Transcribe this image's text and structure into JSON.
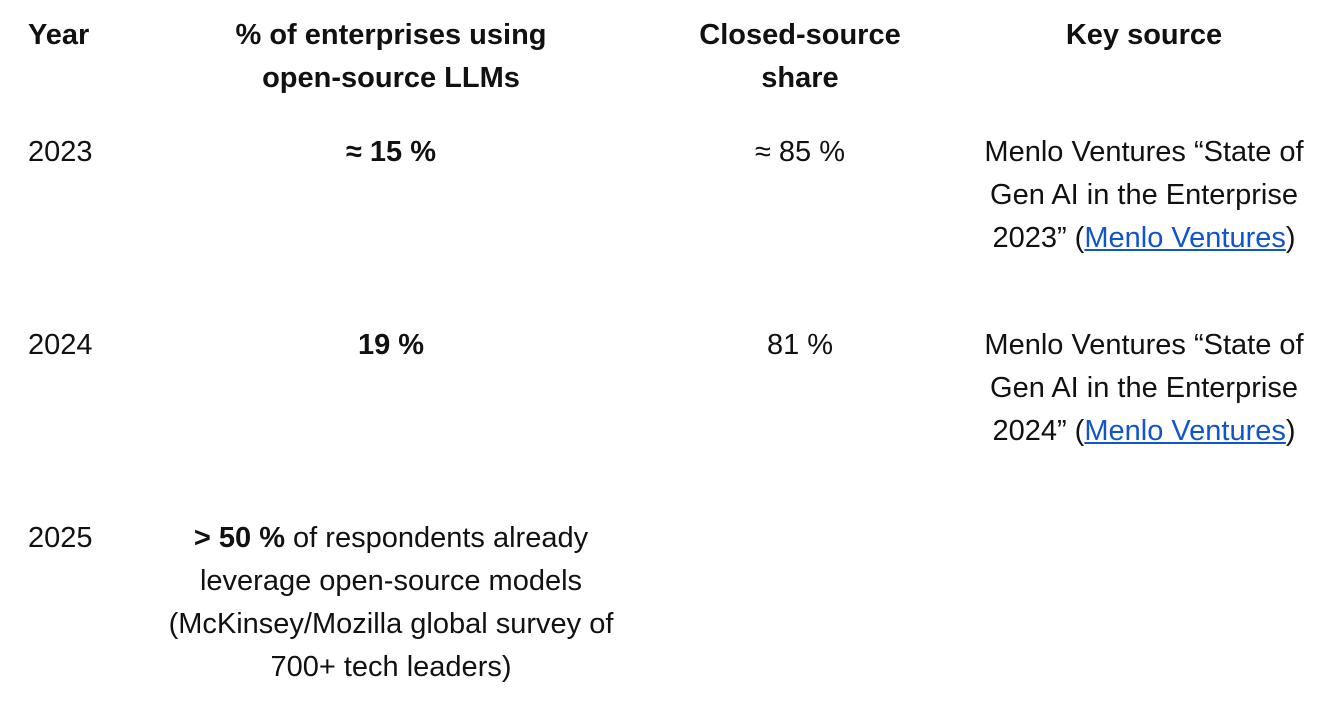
{
  "header": {
    "year": "Year",
    "pct_line1": "% of enterprises using",
    "pct_line2": "open-source LLMs",
    "closed_line1": "Closed-source",
    "closed_line2": "share",
    "source": "Key source"
  },
  "rows": [
    {
      "year": "2023",
      "pct": "≈ 15 %",
      "closed": "≈ 85 %",
      "source_line1": "Menlo Ventures “State of",
      "source_line2": "Gen AI in the Enterprise",
      "source_line3_prefix": "2023” (",
      "source_link": "Menlo Ventures",
      "source_line3_suffix": ")"
    },
    {
      "year": "2024",
      "pct": "19 %",
      "closed": "81 %",
      "source_line1": "Menlo Ventures “State of",
      "source_line2": "Gen AI in the Enterprise",
      "source_line3_prefix": "2024” (",
      "source_link": "Menlo Ventures",
      "source_line3_suffix": ")"
    },
    {
      "year": "2025",
      "pct_bold": "> 50 %",
      "pct_line1_rest": " of respondents already",
      "pct_line2": "leverage open-source models",
      "pct_line3": "(McKinsey/Mozilla global survey of",
      "pct_line4": "700+ tech leaders)"
    }
  ]
}
